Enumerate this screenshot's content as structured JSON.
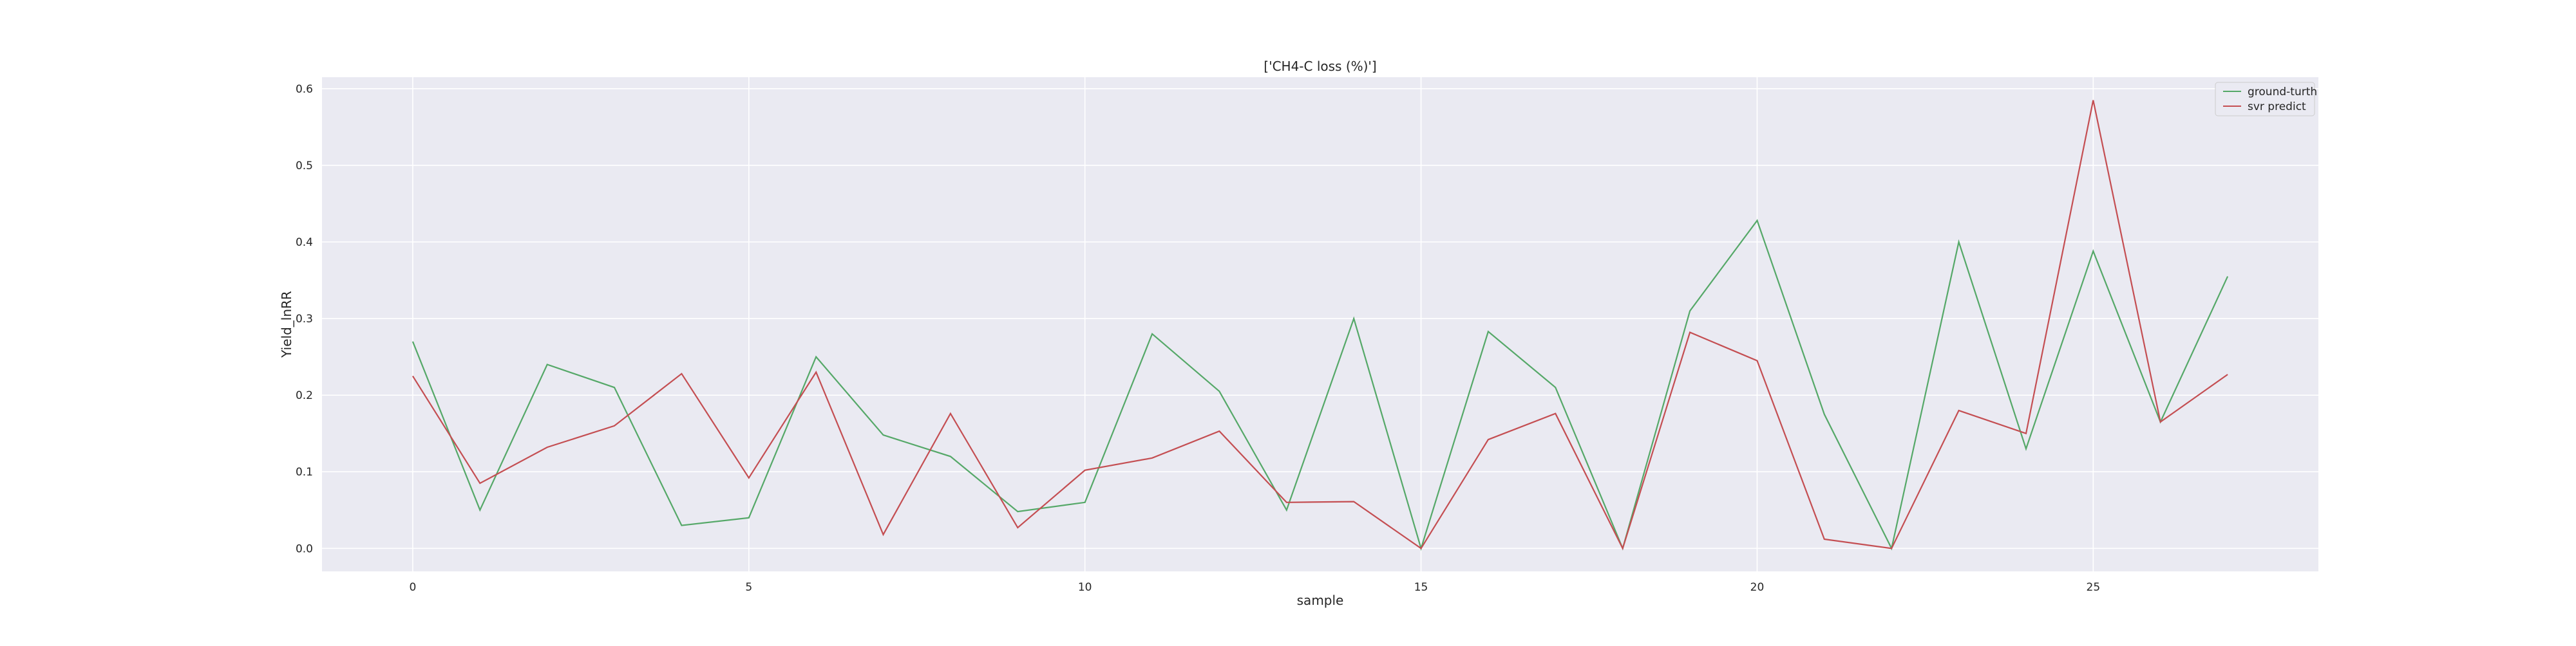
{
  "chart_data": {
    "type": "line",
    "title": "['CH4-C loss (%)']",
    "xlabel": "sample",
    "ylabel": "Yield_lnRR",
    "xlim": [
      -1.35,
      28.35
    ],
    "ylim": [
      -0.03,
      0.615
    ],
    "grid": true,
    "legend_position": "top-right",
    "x": [
      0,
      1,
      2,
      3,
      4,
      5,
      6,
      7,
      8,
      9,
      10,
      11,
      12,
      13,
      14,
      15,
      16,
      17,
      18,
      19,
      20,
      21,
      22,
      23,
      24,
      25,
      26,
      27
    ],
    "x_ticks": [
      0,
      5,
      10,
      15,
      20,
      25
    ],
    "x_tick_labels": [
      "0",
      "5",
      "10",
      "15",
      "20",
      "25"
    ],
    "y_ticks": [
      0.0,
      0.1,
      0.2,
      0.3,
      0.4,
      0.5,
      0.6
    ],
    "y_tick_labels": [
      "0.0",
      "0.1",
      "0.2",
      "0.3",
      "0.4",
      "0.5",
      "0.6"
    ],
    "series": [
      {
        "name": "ground-turth",
        "color": "#55a868",
        "values": [
          0.27,
          0.05,
          0.24,
          0.21,
          0.03,
          0.04,
          0.25,
          0.148,
          0.12,
          0.048,
          0.06,
          0.28,
          0.205,
          0.05,
          0.3,
          0.0,
          0.283,
          0.21,
          0.0,
          0.31,
          0.428,
          0.175,
          0.0,
          0.4,
          0.13,
          0.388,
          0.165,
          0.355
        ]
      },
      {
        "name": "svr predict",
        "color": "#c44e52",
        "values": [
          0.225,
          0.085,
          0.132,
          0.16,
          0.228,
          0.092,
          0.23,
          0.018,
          0.176,
          0.027,
          0.102,
          0.118,
          0.153,
          0.06,
          0.061,
          0.0,
          0.142,
          0.176,
          0.0,
          0.282,
          0.245,
          0.012,
          0.0,
          0.18,
          0.15,
          0.585,
          0.165,
          0.227
        ]
      }
    ]
  }
}
